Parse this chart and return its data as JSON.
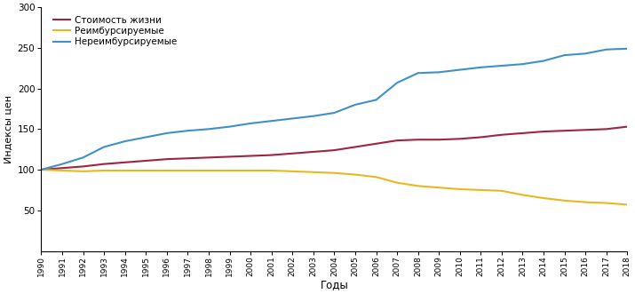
{
  "years": [
    1990,
    1991,
    1992,
    1993,
    1994,
    1995,
    1996,
    1997,
    1998,
    1999,
    2000,
    2001,
    2002,
    2003,
    2004,
    2005,
    2006,
    2007,
    2008,
    2009,
    2010,
    2011,
    2012,
    2013,
    2014,
    2015,
    2016,
    2017,
    2018
  ],
  "stoimost": [
    100,
    102,
    104,
    107,
    109,
    111,
    113,
    114,
    115,
    116,
    117,
    118,
    120,
    122,
    124,
    128,
    132,
    136,
    137,
    137,
    138,
    140,
    143,
    145,
    147,
    148,
    149,
    150,
    153
  ],
  "reimb": [
    100,
    99,
    98,
    99,
    99,
    99,
    99,
    99,
    99,
    99,
    99,
    99,
    98,
    97,
    96,
    94,
    91,
    84,
    80,
    78,
    76,
    75,
    74,
    69,
    65,
    62,
    60,
    59,
    57
  ],
  "nereimb": [
    100,
    107,
    115,
    128,
    135,
    140,
    145,
    148,
    150,
    153,
    157,
    160,
    163,
    166,
    170,
    180,
    186,
    207,
    219,
    220,
    223,
    226,
    228,
    230,
    234,
    241,
    243,
    248,
    249
  ],
  "color_stoimost": "#a0243c",
  "color_reimb": "#e8b820",
  "color_nereimb": "#4090c8",
  "ylabel": "Индексы цен",
  "xlabel": "Годы",
  "legend_stoimost": "Стоимость жизни",
  "legend_reimb": "Реимбурсируемые",
  "legend_nereimb": "Нереимбурсируемые",
  "ylim": [
    0,
    300
  ],
  "yticks": [
    50,
    100,
    150,
    200,
    250,
    300
  ],
  "linewidth": 1.5,
  "bg_color": "#ffffff",
  "tick_color": "#000000",
  "spine_color": "#000000"
}
